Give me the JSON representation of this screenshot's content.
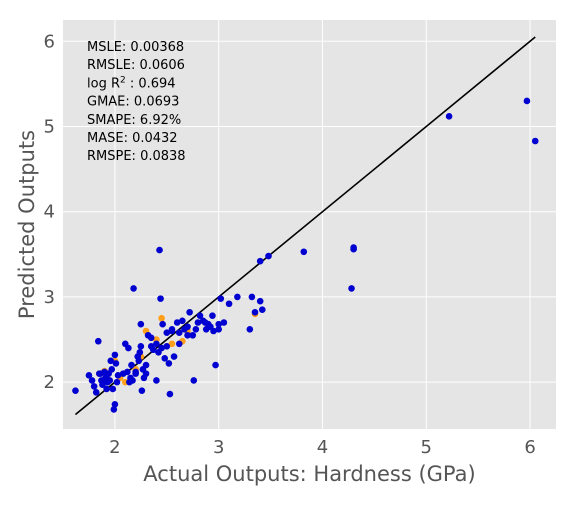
{
  "chart_data": {
    "type": "scatter",
    "title": "",
    "xlabel": "Actual Outputs: Hardness (GPa)",
    "ylabel": "Predicted Outputs",
    "xlim": [
      1.5,
      6.25
    ],
    "ylim": [
      1.45,
      6.25
    ],
    "xticks": [
      "2",
      "3",
      "4",
      "5",
      "6"
    ],
    "yticks": [
      "2",
      "3",
      "4",
      "5",
      "6"
    ],
    "grid": true,
    "background_color": "#e5e5e5",
    "grid_color": "#ffffff",
    "metrics": [
      {
        "text": "MSLE: 0.00368"
      },
      {
        "text": "RMSLE: 0.0606"
      },
      {
        "pre": "log R",
        "sup": "2",
        "post": " : 0.694"
      },
      {
        "text": "GMAE: 0.0693"
      },
      {
        "text": "SMAPE: 6.92%"
      },
      {
        "text": "MASE: 0.0432"
      },
      {
        "text": "RMSPE: 0.0838"
      }
    ],
    "identity_line": {
      "x": [
        1.62,
        6.05
      ],
      "y": [
        1.62,
        6.05
      ],
      "color": "#000000"
    },
    "series": [
      {
        "color": "#ff9f1a",
        "points": [
          [
            1.85,
            2.1
          ],
          [
            1.9,
            2.13
          ],
          [
            2.0,
            2.25
          ],
          [
            2.1,
            2.0
          ],
          [
            2.2,
            2.15
          ],
          [
            2.25,
            2.3
          ],
          [
            2.4,
            2.5
          ],
          [
            2.45,
            2.75
          ],
          [
            2.55,
            2.45
          ],
          [
            2.65,
            2.48
          ],
          [
            2.7,
            2.6
          ],
          [
            3.35,
            2.8
          ],
          [
            2.3,
            2.6
          ],
          [
            2.05,
            2.05
          ],
          [
            1.95,
            2.02
          ]
        ]
      },
      {
        "color": "#0000d0",
        "points": [
          [
            1.62,
            1.9
          ],
          [
            1.75,
            2.08
          ],
          [
            1.78,
            2.02
          ],
          [
            1.8,
            1.95
          ],
          [
            1.82,
            1.88
          ],
          [
            1.84,
            2.48
          ],
          [
            1.85,
            2.1
          ],
          [
            1.87,
            2.02
          ],
          [
            1.88,
            1.97
          ],
          [
            1.9,
            2.12
          ],
          [
            1.91,
            2.05
          ],
          [
            1.92,
            1.92
          ],
          [
            1.93,
            2.0
          ],
          [
            1.94,
            2.1
          ],
          [
            1.95,
            2.02
          ],
          [
            1.96,
            2.25
          ],
          [
            1.97,
            2.15
          ],
          [
            1.98,
            1.92
          ],
          [
            1.99,
            1.68
          ],
          [
            2.0,
            1.74
          ],
          [
            2.0,
            2.32
          ],
          [
            2.01,
            2.22
          ],
          [
            2.02,
            2.0
          ],
          [
            2.03,
            2.08
          ],
          [
            2.1,
            2.45
          ],
          [
            2.12,
            2.12
          ],
          [
            2.13,
            2.4
          ],
          [
            2.14,
            2.0
          ],
          [
            2.15,
            2.05
          ],
          [
            2.16,
            2.2
          ],
          [
            2.18,
            3.1
          ],
          [
            2.2,
            2.1
          ],
          [
            2.22,
            2.3
          ],
          [
            2.23,
            2.25
          ],
          [
            2.24,
            2.35
          ],
          [
            2.25,
            2.68
          ],
          [
            2.26,
            1.9
          ],
          [
            2.27,
            2.15
          ],
          [
            2.28,
            2.05
          ],
          [
            2.3,
            2.1
          ],
          [
            2.3,
            2.2
          ],
          [
            2.32,
            2.55
          ],
          [
            2.35,
            2.42
          ],
          [
            2.37,
            2.38
          ],
          [
            2.4,
            2.02
          ],
          [
            2.4,
            2.45
          ],
          [
            2.42,
            2.35
          ],
          [
            2.43,
            3.55
          ],
          [
            2.44,
            2.98
          ],
          [
            2.45,
            2.4
          ],
          [
            2.46,
            2.68
          ],
          [
            2.48,
            2.28
          ],
          [
            2.5,
            2.58
          ],
          [
            2.5,
            2.42
          ],
          [
            2.52,
            2.22
          ],
          [
            2.53,
            1.86
          ],
          [
            2.55,
            2.6
          ],
          [
            2.57,
            2.3
          ],
          [
            2.6,
            2.7
          ],
          [
            2.62,
            2.58
          ],
          [
            2.65,
            2.72
          ],
          [
            2.67,
            2.62
          ],
          [
            2.7,
            2.65
          ],
          [
            2.72,
            2.82
          ],
          [
            2.75,
            2.55
          ],
          [
            2.76,
            2.02
          ],
          [
            2.78,
            2.62
          ],
          [
            2.8,
            2.7
          ],
          [
            2.82,
            2.78
          ],
          [
            2.85,
            2.72
          ],
          [
            2.88,
            2.62
          ],
          [
            2.9,
            2.68
          ],
          [
            2.92,
            2.65
          ],
          [
            2.94,
            2.78
          ],
          [
            2.95,
            2.6
          ],
          [
            2.97,
            2.2
          ],
          [
            3.0,
            2.62
          ],
          [
            3.02,
            2.98
          ],
          [
            3.05,
            2.7
          ],
          [
            3.1,
            2.92
          ],
          [
            3.18,
            3.0
          ],
          [
            3.3,
            2.62
          ],
          [
            3.32,
            3.0
          ],
          [
            3.35,
            2.82
          ],
          [
            3.4,
            2.95
          ],
          [
            3.42,
            2.85
          ],
          [
            3.4,
            3.42
          ],
          [
            3.48,
            3.48
          ],
          [
            3.82,
            3.53
          ],
          [
            4.28,
            3.1
          ],
          [
            4.3,
            3.56
          ],
          [
            4.3,
            3.58
          ],
          [
            5.22,
            5.12
          ],
          [
            5.97,
            5.3
          ],
          [
            6.05,
            4.83
          ],
          [
            2.7,
            2.55
          ],
          [
            2.62,
            2.45
          ],
          [
            2.35,
            2.52
          ],
          [
            2.2,
            2.12
          ],
          [
            2.08,
            2.1
          ],
          [
            1.92,
            2.08
          ],
          [
            2.25,
            2.42
          ],
          [
            2.55,
            2.62
          ],
          [
            2.87,
            2.7
          ],
          [
            3.0,
            2.68
          ],
          [
            2.17,
            2.02
          ],
          [
            1.86,
            2.1
          ]
        ]
      }
    ]
  }
}
